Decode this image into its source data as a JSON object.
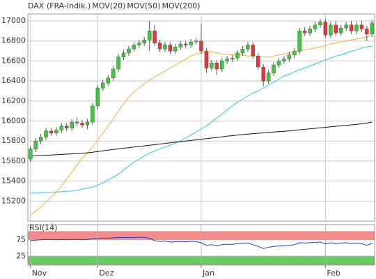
{
  "chart_data": [
    {
      "type": "candlestick",
      "title": "DAX (FRA-Indik.)",
      "title_color": "#e04a3a",
      "categories": [
        "Nov",
        null,
        null,
        null,
        null,
        null,
        null,
        null,
        null,
        null,
        null,
        null,
        null,
        "Dez",
        null,
        null,
        null,
        null,
        null,
        null,
        null,
        null,
        null,
        null,
        null,
        null,
        null,
        null,
        null,
        null,
        null,
        null,
        null,
        "Jan",
        null,
        null,
        null,
        null,
        null,
        null,
        null,
        null,
        null,
        null,
        null,
        null,
        null,
        null,
        null,
        null,
        null,
        null,
        null,
        null,
        null,
        null,
        null,
        "Feb",
        null,
        null,
        null,
        null,
        null,
        null,
        null,
        null,
        null
      ],
      "open": [
        15620,
        15720,
        15800,
        15840,
        15900,
        15880,
        15910,
        15950,
        15930,
        15990,
        15980,
        15960,
        15990,
        16150,
        16330,
        16380,
        16430,
        16520,
        16640,
        16680,
        16720,
        16760,
        16780,
        16810,
        16900,
        16780,
        16720,
        16760,
        16700,
        16740,
        16770,
        16760,
        16790,
        16800,
        16700,
        16530,
        16580,
        16520,
        16600,
        16620,
        16630,
        16680,
        16720,
        16760,
        16650,
        16540,
        16400,
        16480,
        16560,
        16600,
        16620,
        16660,
        16700,
        16900,
        16880,
        16920,
        16960,
        16990,
        16860,
        16960,
        16880,
        16930,
        16960,
        16900,
        16960,
        16920,
        16870
      ],
      "high": [
        15750,
        15830,
        15870,
        15930,
        15930,
        15940,
        15980,
        15980,
        16020,
        16040,
        16010,
        16020,
        16180,
        16360,
        16410,
        16460,
        16550,
        16670,
        16710,
        16750,
        16790,
        16810,
        16840,
        17000,
        16960,
        16810,
        16790,
        16790,
        16770,
        16800,
        16800,
        16820,
        16830,
        16970,
        16730,
        16610,
        16610,
        16630,
        16650,
        16660,
        16710,
        16750,
        16790,
        16790,
        16680,
        16570,
        16510,
        16590,
        16630,
        16650,
        16690,
        16730,
        16930,
        16940,
        16950,
        16990,
        17020,
        17020,
        16990,
        17000,
        16960,
        16990,
        17000,
        16990,
        17000,
        16950,
        17010
      ],
      "low": [
        15590,
        15690,
        15770,
        15810,
        15850,
        15850,
        15880,
        15900,
        15900,
        15950,
        15930,
        15920,
        15960,
        16120,
        16300,
        16350,
        16400,
        16490,
        16610,
        16650,
        16690,
        16730,
        16750,
        16700,
        16750,
        16690,
        16690,
        16670,
        16670,
        16710,
        16730,
        16730,
        16760,
        16670,
        16480,
        16500,
        16460,
        16490,
        16570,
        16590,
        16600,
        16650,
        16690,
        16620,
        16510,
        16350,
        16370,
        16450,
        16530,
        16570,
        16590,
        16630,
        16670,
        16850,
        16850,
        16890,
        16930,
        16830,
        16830,
        16850,
        16850,
        16900,
        16870,
        16870,
        16890,
        16800,
        16840
      ],
      "close": [
        15720,
        15800,
        15840,
        15900,
        15880,
        15910,
        15950,
        15930,
        15990,
        15980,
        15960,
        15990,
        16150,
        16330,
        16380,
        16430,
        16520,
        16640,
        16680,
        16720,
        16760,
        16780,
        16810,
        16900,
        16780,
        16720,
        16760,
        16700,
        16740,
        16770,
        16760,
        16790,
        16800,
        16700,
        16530,
        16580,
        16520,
        16600,
        16620,
        16630,
        16680,
        16720,
        16760,
        16650,
        16540,
        16400,
        16480,
        16560,
        16600,
        16620,
        16660,
        16700,
        16900,
        16880,
        16920,
        16960,
        16990,
        16860,
        16960,
        16880,
        16930,
        16960,
        16900,
        16960,
        16920,
        16870,
        16980
      ],
      "up_color": "#3cc83c",
      "down_color": "#e8323c",
      "series": [
        {
          "name": "MOV(20)",
          "color": "#f2b233",
          "values": [
            15060,
            15100,
            15140,
            15190,
            15240,
            15290,
            15350,
            15420,
            15490,
            15560,
            15630,
            15680,
            15740,
            15810,
            15880,
            15950,
            16020,
            16100,
            16170,
            16240,
            16290,
            16330,
            16370,
            16410,
            16440,
            16470,
            16500,
            16530,
            16560,
            16590,
            16620,
            16650,
            16670,
            16680,
            16690,
            16690,
            16680,
            16670,
            16670,
            16660,
            16660,
            16660,
            16650,
            16650,
            16650,
            16640,
            16640,
            16650,
            16660,
            16670,
            16680,
            16690,
            16700,
            16710,
            16720,
            16730,
            16740,
            16750,
            16770,
            16780,
            16790,
            16800,
            16810,
            16820,
            16830,
            16840,
            16860
          ]
        },
        {
          "name": "MOV(50)",
          "color": "#33c4e0",
          "values": [
            15280,
            15280,
            15285,
            15285,
            15290,
            15290,
            15295,
            15300,
            15300,
            15310,
            15320,
            15330,
            15340,
            15360,
            15380,
            15410,
            15440,
            15470,
            15510,
            15550,
            15590,
            15620,
            15650,
            15680,
            15700,
            15720,
            15740,
            15760,
            15780,
            15800,
            15830,
            15860,
            15890,
            15920,
            15950,
            15990,
            16030,
            16070,
            16110,
            16150,
            16190,
            16220,
            16250,
            16280,
            16300,
            16330,
            16360,
            16390,
            16420,
            16450,
            16470,
            16490,
            16510,
            16530,
            16550,
            16570,
            16590,
            16610,
            16630,
            16650,
            16660,
            16680,
            16700,
            16710,
            16730,
            16740,
            16750
          ]
        },
        {
          "name": "MOV(200)",
          "color": "#111111",
          "values": [
            15650,
            15652,
            15655,
            15658,
            15660,
            15663,
            15666,
            15669,
            15672,
            15675,
            15678,
            15682,
            15688,
            15695,
            15702,
            15709,
            15716,
            15722,
            15728,
            15734,
            15740,
            15746,
            15752,
            15758,
            15764,
            15770,
            15776,
            15782,
            15788,
            15794,
            15800,
            15806,
            15812,
            15818,
            15824,
            15830,
            15836,
            15842,
            15848,
            15854,
            15860,
            15865,
            15870,
            15874,
            15878,
            15882,
            15886,
            15890,
            15894,
            15898,
            15902,
            15907,
            15912,
            15917,
            15922,
            15927,
            15932,
            15937,
            15942,
            15947,
            15952,
            15957,
            15962,
            15967,
            15972,
            15980,
            15990
          ]
        }
      ],
      "ylim": [
        15000,
        17070
      ],
      "yticks": [
        15200,
        15400,
        15600,
        15800,
        16000,
        16200,
        16400,
        16600,
        16800,
        17000
      ],
      "grid": true
    },
    {
      "type": "line",
      "series": [
        {
          "name": "RSI(14)",
          "color": "#2040c0",
          "values": [
            72,
            74,
            75,
            76,
            76,
            75,
            76,
            75,
            76,
            76,
            75,
            76,
            78,
            79,
            80,
            80,
            81,
            82,
            82,
            82,
            82,
            83,
            82,
            80,
            72,
            70,
            71,
            68,
            69,
            70,
            69,
            70,
            70,
            66,
            58,
            60,
            57,
            60,
            61,
            61,
            63,
            64,
            65,
            60,
            55,
            48,
            52,
            55,
            56,
            57,
            58,
            60,
            66,
            65,
            66,
            67,
            68,
            62,
            66,
            63,
            65,
            66,
            63,
            65,
            63,
            58,
            64
          ]
        }
      ],
      "ylim": [
        0,
        100
      ],
      "yticks": [
        25,
        75
      ],
      "bands": [
        {
          "from": 75,
          "to": 100,
          "color": "#f28c8c"
        },
        {
          "from": 0,
          "to": 25,
          "color": "#66cc66"
        }
      ]
    }
  ]
}
